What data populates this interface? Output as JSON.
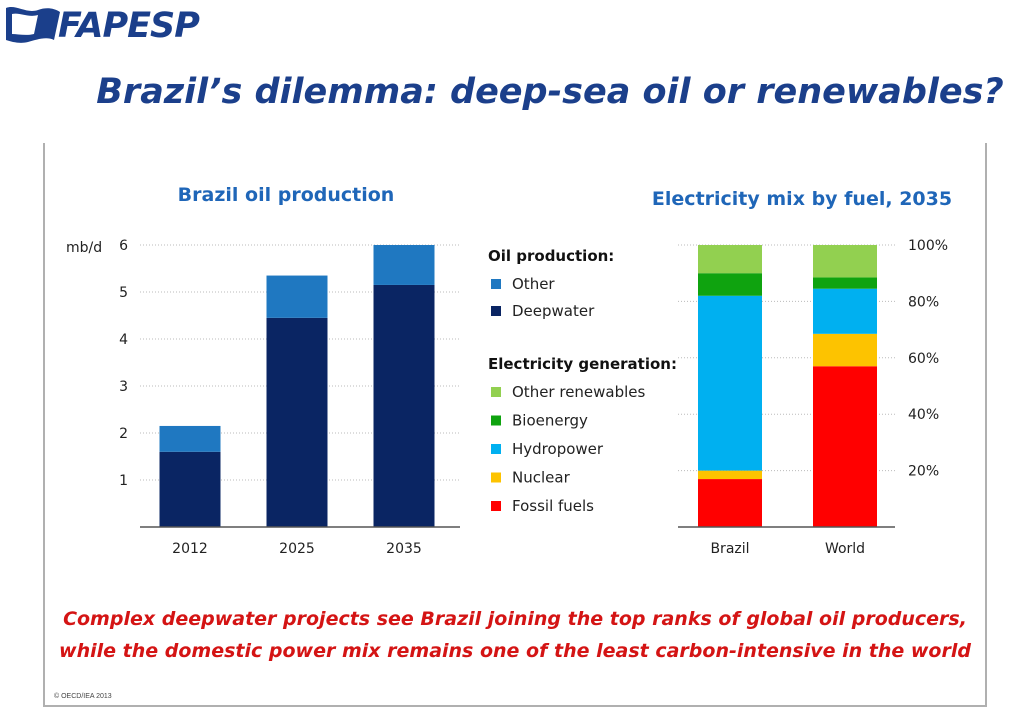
{
  "header": {
    "logo_text": "FAPESP",
    "title": "Brazil’s dilemma: deep-sea oil or renewables?"
  },
  "chart_data": [
    {
      "type": "bar",
      "stacked": true,
      "title": "Brazil oil production",
      "ylabel": "mb/d",
      "ylim": [
        0,
        6
      ],
      "yticks": [
        "1",
        "2",
        "3",
        "4",
        "5",
        "6"
      ],
      "categories": [
        "2012",
        "2025",
        "2035"
      ],
      "series": [
        {
          "name": "Deepwater",
          "color": "#0a2563",
          "values": [
            1.6,
            4.45,
            5.15
          ]
        },
        {
          "name": "Other",
          "color": "#1f78c1",
          "values": [
            0.55,
            0.9,
            0.85
          ]
        }
      ]
    },
    {
      "type": "bar",
      "stacked": true,
      "title": "Electricity mix by fuel, 2035",
      "ylim": [
        0,
        100
      ],
      "yticks": [
        "20%",
        "40%",
        "60%",
        "80%",
        "100%"
      ],
      "categories": [
        "Brazil",
        "World"
      ],
      "series": [
        {
          "name": "Fossil fuels",
          "color": "#ff0000",
          "values": [
            17,
            57
          ]
        },
        {
          "name": "Nuclear",
          "color": "#fdc300",
          "values": [
            3,
            11.5
          ]
        },
        {
          "name": "Hydropower",
          "color": "#00b0f0",
          "values": [
            62,
            16
          ]
        },
        {
          "name": "Bioenergy",
          "color": "#0fa30f",
          "values": [
            8,
            4
          ]
        },
        {
          "name": "Other renewables",
          "color": "#92d050",
          "values": [
            10,
            11.5
          ]
        }
      ]
    }
  ],
  "legend": {
    "oil_heading": "Oil production:",
    "oil_items": [
      {
        "label": "Other",
        "color": "#1f78c1"
      },
      {
        "label": "Deepwater",
        "color": "#0a2563"
      }
    ],
    "elec_heading": "Electricity generation:",
    "elec_items": [
      {
        "label": "Other renewables",
        "color": "#92d050"
      },
      {
        "label": "Bioenergy",
        "color": "#0fa30f"
      },
      {
        "label": "Hydropower",
        "color": "#00b0f0"
      },
      {
        "label": "Nuclear",
        "color": "#fdc300"
      },
      {
        "label": "Fossil fuels",
        "color": "#ff0000"
      }
    ]
  },
  "caption": {
    "line1": "Complex deepwater projects see Brazil joining the top ranks of global oil producers,",
    "line2": "while the domestic power mix remains one of the least carbon-intensive in the world"
  },
  "copyright": "© OECD/IEA 2013"
}
